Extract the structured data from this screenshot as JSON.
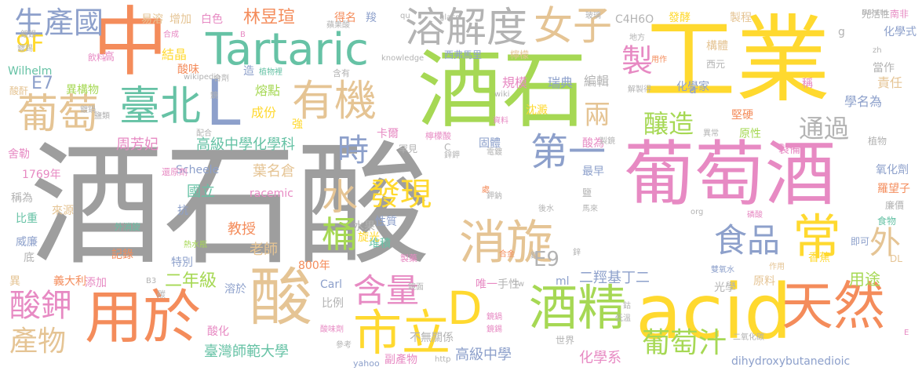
{
  "palette": {
    "gray": "#9e9e9e",
    "orange": "#f48c5b",
    "teal": "#66c2a5",
    "blue": "#8da0cb",
    "pink": "#e78ac3",
    "green": "#a6d854",
    "yellow": "#ffd92f",
    "tan": "#e5c494",
    "lightgray": "#b3b3b3"
  },
  "words": [
    {
      "text": "酒石酸"
    },
    {
      "text": "工業"
    },
    {
      "text": "葡萄酒"
    },
    {
      "text": "中"
    },
    {
      "text": "酒石"
    },
    {
      "text": "acid"
    },
    {
      "text": "用於"
    },
    {
      "text": "酸"
    },
    {
      "text": "Tartaric"
    },
    {
      "text": "有機"
    },
    {
      "text": "臺北"
    },
    {
      "text": "L"
    },
    {
      "text": "溶解度"
    },
    {
      "text": "女子"
    },
    {
      "text": "消旋"
    },
    {
      "text": "天然"
    },
    {
      "text": "常"
    },
    {
      "text": "市立"
    },
    {
      "text": "D"
    },
    {
      "text": "酒精"
    },
    {
      "text": "葡萄"
    },
    {
      "text": "生產國"
    },
    {
      "text": "製"
    },
    {
      "text": "第一"
    },
    {
      "text": "食品"
    },
    {
      "text": "水"
    },
    {
      "text": "桶"
    },
    {
      "text": "時"
    },
    {
      "text": "發現"
    },
    {
      "text": "含量"
    },
    {
      "text": "葡萄汁"
    },
    {
      "text": "酸鉀"
    },
    {
      "text": "產物"
    },
    {
      "text": "釀造"
    },
    {
      "text": "通過"
    },
    {
      "text": "兩"
    },
    {
      "text": "外"
    },
    {
      "text": "E9"
    },
    {
      "text": "E7"
    },
    {
      "text": "9F"
    },
    {
      "text": "林昱瑄"
    },
    {
      "text": "二年級"
    },
    {
      "text": "高級中學化學科"
    },
    {
      "text": "周芳妃"
    },
    {
      "text": "葉名倉"
    },
    {
      "text": "國立"
    },
    {
      "text": "教授"
    },
    {
      "text": "老師"
    },
    {
      "text": "臺灣師範大學"
    },
    {
      "text": "高級中學"
    },
    {
      "text": "化學系"
    },
    {
      "text": "二羥基丁二"
    },
    {
      "text": "用途"
    },
    {
      "text": "責任"
    },
    {
      "text": "學名為"
    },
    {
      "text": "瑞典"
    },
    {
      "text": "編輯"
    },
    {
      "text": "規模"
    },
    {
      "text": "熔點"
    },
    {
      "text": "成份"
    },
    {
      "text": "結晶"
    },
    {
      "text": "酸味"
    },
    {
      "text": "溶於"
    },
    {
      "text": "比例"
    },
    {
      "text": "記錄"
    },
    {
      "text": "特別"
    },
    {
      "text": "添加"
    },
    {
      "text": "來源"
    },
    {
      "text": "比重"
    },
    {
      "text": "威廉"
    },
    {
      "text": "舍勒"
    },
    {
      "text": "異構物"
    },
    {
      "text": "1769年"
    },
    {
      "text": "800年"
    },
    {
      "text": "Scheele"
    },
    {
      "text": "racemic"
    },
    {
      "text": "Carl"
    },
    {
      "text": "Wilhelm"
    },
    {
      "text": "dihydroxybutanedioic"
    },
    {
      "text": "C4H6O"
    },
    {
      "text": "發酵"
    },
    {
      "text": "製程"
    },
    {
      "text": "光活性"
    },
    {
      "text": "化學式"
    },
    {
      "text": "構體"
    },
    {
      "text": "西元"
    },
    {
      "text": "當作"
    },
    {
      "text": "化學家"
    },
    {
      "text": "製備"
    },
    {
      "text": "原性"
    },
    {
      "text": "堅硬"
    },
    {
      "text": "氧化劑"
    },
    {
      "text": "羅望子"
    },
    {
      "text": "廉價"
    },
    {
      "text": "食物"
    },
    {
      "text": "植物"
    },
    {
      "text": "香蕉"
    },
    {
      "text": "原料"
    },
    {
      "text": "光學"
    },
    {
      "text": "堆積"
    },
    {
      "text": "性質"
    },
    {
      "text": "旋光"
    },
    {
      "text": "水果"
    },
    {
      "text": "手性"
    },
    {
      "text": "唯一"
    },
    {
      "text": "ml"
    },
    {
      "text": "沈澱"
    },
    {
      "text": "卡爾"
    },
    {
      "text": "固體"
    },
    {
      "text": "酸為"
    },
    {
      "text": "最早"
    },
    {
      "text": "抗"
    },
    {
      "text": "強"
    },
    {
      "text": "造"
    },
    {
      "text": "得名"
    },
    {
      "text": "羧"
    },
    {
      "text": "易溶"
    },
    {
      "text": "增加"
    },
    {
      "text": "白色"
    },
    {
      "text": "西弗馬里"
    },
    {
      "text": "檸檬"
    },
    {
      "text": "稱"
    },
    {
      "text": "副產物"
    },
    {
      "text": "不無關係"
    },
    {
      "text": "世界"
    },
    {
      "text": "酸化"
    },
    {
      "text": "義大利"
    },
    {
      "text": "異"
    },
    {
      "text": "底"
    },
    {
      "text": "稱為"
    },
    {
      "text": "酸酐"
    },
    {
      "text": "高"
    },
    {
      "text": "飲料"
    },
    {
      "text": "B8http"
    },
    {
      "text": "南非"
    },
    {
      "text": "knowledge"
    },
    {
      "text": "glass"
    },
    {
      "text": "yahoo"
    },
    {
      "text": "http"
    },
    {
      "text": "org"
    },
    {
      "text": "wikipedia"
    },
    {
      "text": "wiki"
    },
    {
      "text": "B3"
    },
    {
      "text": "DL"
    },
    {
      "text": "即可"
    },
    {
      "text": "作用"
    },
    {
      "text": "雙氧水"
    },
    {
      "text": "二氧化碳"
    },
    {
      "text": "低溫"
    },
    {
      "text": "鈷"
    },
    {
      "text": "熱水瓶"
    },
    {
      "text": "外消旋"
    },
    {
      "text": "鏡面"
    },
    {
      "text": "鏡鍋"
    },
    {
      "text": "鏡錫"
    },
    {
      "text": "製藥"
    },
    {
      "text": "合金"
    },
    {
      "text": "碳"
    },
    {
      "text": "參考"
    },
    {
      "text": "酸味劑"
    },
    {
      "text": "檸檬酸"
    },
    {
      "text": "C"
    },
    {
      "text": "還原劑"
    },
    {
      "text": "配合"
    },
    {
      "text": "製鏡"
    },
    {
      "text": "異常"
    },
    {
      "text": "資料"
    },
    {
      "text": "解製得"
    },
    {
      "text": "地方"
    },
    {
      "text": "用作"
    },
    {
      "text": "含有"
    },
    {
      "text": "植物裡"
    },
    {
      "text": "合劑"
    },
    {
      "text": "蘋果酸"
    },
    {
      "text": "玻璃"
    },
    {
      "text": "合成"
    },
    {
      "text": "鹽類"
    },
    {
      "text": "鍍鍋"
    },
    {
      "text": "鍍錫"
    },
    {
      "text": "qu"
    },
    {
      "text": "zh"
    },
    {
      "text": "tw"
    },
    {
      "text": "g"
    },
    {
      "text": "a"
    },
    {
      "text": "E"
    },
    {
      "text": "處"
    },
    {
      "text": "罕見"
    },
    {
      "text": "鹽"
    },
    {
      "text": "馬來"
    },
    {
      "text": "後水"
    },
    {
      "text": "磷酸"
    },
    {
      "text": "鉀鈉"
    },
    {
      "text": "鋅"
    },
    {
      "text": "鍍"
    },
    {
      "text": "B"
    },
    {
      "text": "鍍銀"
    },
    {
      "text": "鏡"
    },
    {
      "text": "電鍍"
    },
    {
      "text": "鋅鉀"
    }
  ]
}
